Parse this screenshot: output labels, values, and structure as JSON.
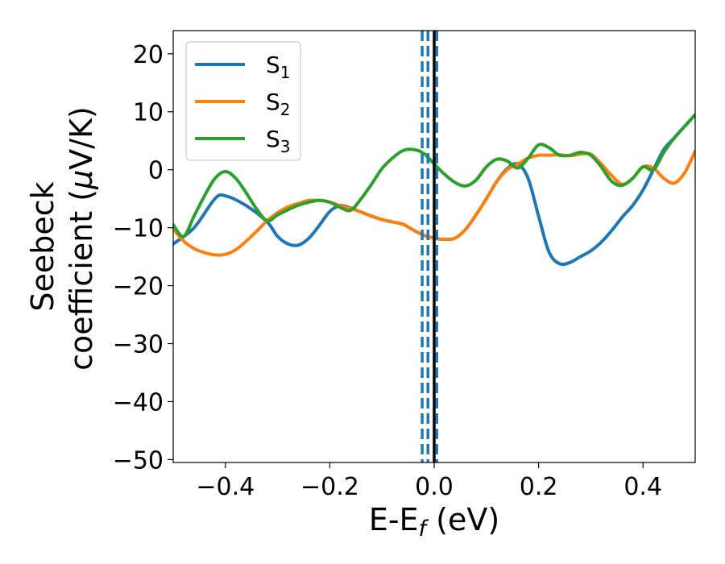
{
  "chart_data": {
    "type": "line",
    "title": "",
    "xlabel": {
      "main": "E-E",
      "sub": "f",
      "suffix": " (eV)"
    },
    "ylabel": {
      "line1": "Seebeck",
      "line2_pre": "coefficient  (",
      "mu": "μ",
      "line2_post": "V/K)"
    },
    "xlim": [
      -0.5,
      0.5
    ],
    "ylim": [
      -50.5,
      24
    ],
    "xticks": [
      -0.4,
      -0.2,
      0.0,
      0.2,
      0.4
    ],
    "xtick_labels": [
      "−0.4",
      "−0.2",
      "0.0",
      "0.2",
      "0.4"
    ],
    "yticks": [
      20,
      10,
      0,
      -10,
      -20,
      -30,
      -40,
      -50
    ],
    "ytick_labels": [
      "20",
      "10",
      "0",
      "−10",
      "−20",
      "−30",
      "−40",
      "−50"
    ],
    "grid": false,
    "legend_placement": "upper-left",
    "series": [
      {
        "name": "S",
        "sub": "1",
        "color": "#1f77b4",
        "x": [
          -0.5,
          -0.46,
          -0.42,
          -0.4,
          -0.36,
          -0.32,
          -0.3,
          -0.28,
          -0.26,
          -0.24,
          -0.22,
          -0.2,
          -0.18,
          -0.16,
          -0.14,
          -0.12,
          -0.1,
          -0.08,
          -0.06,
          -0.04,
          -0.02,
          0.0,
          0.02,
          0.04,
          0.06,
          0.08,
          0.1,
          0.12,
          0.14,
          0.16,
          0.18,
          0.2,
          0.22,
          0.24,
          0.26,
          0.28,
          0.3,
          0.32,
          0.34,
          0.36,
          0.38,
          0.4,
          0.42,
          0.44,
          0.46,
          0.48,
          0.5
        ],
        "y": [
          -12.8,
          -10.0,
          -5.0,
          -4.5,
          -6.2,
          -9.0,
          -11.5,
          -12.8,
          -13.0,
          -11.8,
          -9.6,
          -7.2,
          -6.2,
          -6.6,
          -7.3,
          -8.0,
          -8.6,
          -9.0,
          -9.4,
          -10.4,
          -11.3,
          -11.8,
          -12.0,
          -11.8,
          -10.3,
          -7.8,
          -5.0,
          -2.0,
          0.2,
          1.0,
          -1.5,
          -8.0,
          -14.2,
          -16.2,
          -16.0,
          -15.0,
          -14.0,
          -12.5,
          -10.5,
          -8.2,
          -6.2,
          -3.5,
          0.0,
          3.5,
          5.5,
          7.5,
          9.5
        ]
      },
      {
        "name": "S",
        "sub": "2",
        "color": "#ff7f0e",
        "x": [
          -0.5,
          -0.48,
          -0.46,
          -0.44,
          -0.42,
          -0.4,
          -0.38,
          -0.36,
          -0.34,
          -0.32,
          -0.3,
          -0.28,
          -0.26,
          -0.24,
          -0.22,
          -0.2,
          -0.18,
          -0.16,
          -0.14,
          -0.12,
          -0.1,
          -0.08,
          -0.06,
          -0.04,
          -0.02,
          0.0,
          0.02,
          0.04,
          0.06,
          0.08,
          0.1,
          0.12,
          0.14,
          0.16,
          0.18,
          0.2,
          0.22,
          0.24,
          0.26,
          0.28,
          0.3,
          0.32,
          0.34,
          0.36,
          0.38,
          0.4,
          0.42,
          0.44,
          0.46,
          0.48,
          0.5
        ],
        "y": [
          -10.2,
          -12.3,
          -13.6,
          -14.3,
          -14.7,
          -14.6,
          -13.8,
          -12.3,
          -10.6,
          -8.8,
          -7.4,
          -6.4,
          -5.8,
          -5.3,
          -5.3,
          -5.6,
          -6.2,
          -6.7,
          -7.3,
          -8.0,
          -8.6,
          -9.0,
          -9.4,
          -10.4,
          -11.3,
          -11.8,
          -12.0,
          -11.8,
          -10.3,
          -7.8,
          -5.0,
          -2.0,
          0.0,
          1.0,
          2.0,
          2.5,
          2.5,
          2.6,
          2.4,
          2.7,
          2.7,
          1.0,
          -1.0,
          -2.5,
          -1.5,
          0.5,
          0.3,
          -1.5,
          -2.3,
          -0.5,
          3.2
        ]
      },
      {
        "name": "S",
        "sub": "3",
        "color": "#2ca02c",
        "x": [
          -0.5,
          -0.48,
          -0.46,
          -0.44,
          -0.42,
          -0.4,
          -0.38,
          -0.36,
          -0.34,
          -0.32,
          -0.3,
          -0.28,
          -0.26,
          -0.24,
          -0.22,
          -0.2,
          -0.18,
          -0.16,
          -0.14,
          -0.12,
          -0.1,
          -0.08,
          -0.06,
          -0.04,
          -0.02,
          0.0,
          0.02,
          0.04,
          0.06,
          0.08,
          0.1,
          0.12,
          0.14,
          0.16,
          0.18,
          0.2,
          0.22,
          0.24,
          0.26,
          0.28,
          0.3,
          0.32,
          0.34,
          0.36,
          0.38,
          0.4,
          0.42,
          0.44,
          0.46,
          0.48,
          0.5
        ],
        "y": [
          -9.5,
          -11.5,
          -8.0,
          -4.5,
          -1.5,
          -0.3,
          -1.5,
          -4.0,
          -6.8,
          -8.8,
          -7.8,
          -6.9,
          -6.1,
          -5.6,
          -5.3,
          -5.6,
          -6.5,
          -7.0,
          -5.0,
          -2.5,
          0.2,
          2.0,
          3.3,
          3.5,
          2.8,
          1.0,
          -0.8,
          -2.2,
          -2.8,
          -1.8,
          0.5,
          1.8,
          1.5,
          0.3,
          2.0,
          4.3,
          3.8,
          2.5,
          2.5,
          3.0,
          2.5,
          0.5,
          -2.0,
          -2.7,
          -1.5,
          0.5,
          0.0,
          3.0,
          5.5,
          7.5,
          9.5
        ]
      }
    ],
    "vlines": [
      {
        "x": -0.023,
        "color": "#1f77b4",
        "style": "dashed"
      },
      {
        "x": -0.012,
        "color": "#1f77b4",
        "style": "dashed"
      },
      {
        "x": 0.0,
        "color": "#000000",
        "style": "solid"
      },
      {
        "x": 0.005,
        "color": "#1f77b4",
        "style": "dashed"
      }
    ]
  }
}
